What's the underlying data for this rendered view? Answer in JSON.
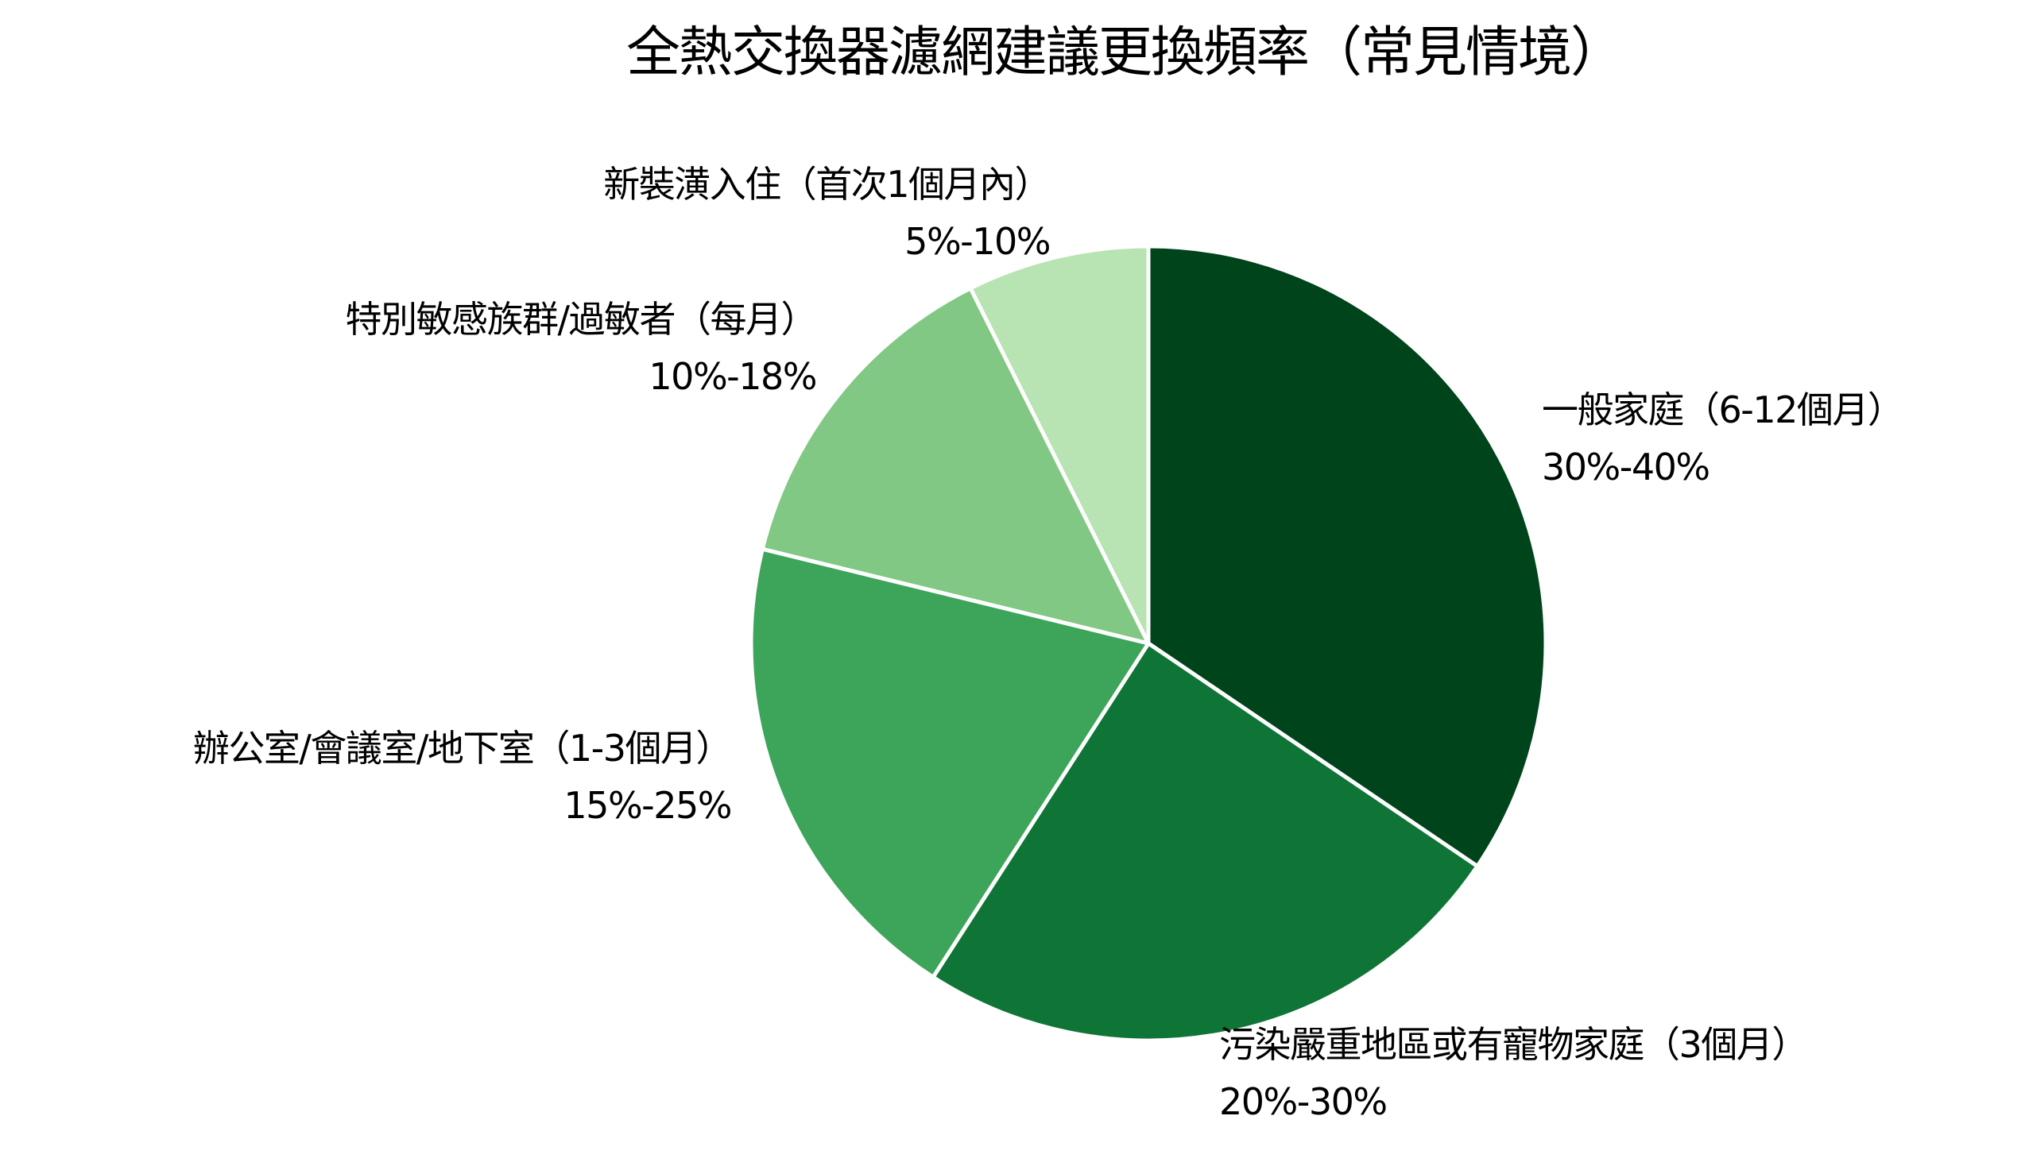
{
  "chart_data": {
    "type": "pie",
    "title": "全熱交換器濾網建議更換頻率（常見情境）",
    "start_angle": "90 (top), clockwise",
    "categories": [
      "一般家庭（6-12個月）",
      "污染嚴重地區或有寵物家庭（3個月）",
      "辦公室/會議室/地下室（1-3個月）",
      "特別敏感族群/過敏者（每月）",
      "新裝潢入住（首次1個月內）"
    ],
    "range_labels": [
      "30%-40%",
      "20%-30%",
      "15%-25%",
      "10%-18%",
      "5%-10%"
    ],
    "values": [
      35,
      25,
      20,
      14,
      7.5
    ],
    "colors": [
      "#00441b",
      "#0f7536",
      "#3da55a",
      "#80c883",
      "#b8e3b2"
    ],
    "legend": "none (labels placed outside slices)",
    "edge_color": "#ffffff"
  },
  "title": "全熱交換器濾網建議更換頻率（常見情境）",
  "slices": [
    {
      "name": "一般家庭（6-12個月）",
      "range": "30%-40%",
      "value": 35,
      "color": "#00441b"
    },
    {
      "name": "污染嚴重地區或有寵物家庭（3個月）",
      "range": "20%-30%",
      "value": 25,
      "color": "#0f7536"
    },
    {
      "name": "辦公室/會議室/地下室（1-3個月）",
      "range": "15%-25%",
      "value": 20,
      "color": "#3da55a"
    },
    {
      "name": "特別敏感族群/過敏者（每月）",
      "range": "10%-18%",
      "value": 14,
      "color": "#80c883"
    },
    {
      "name": "新裝潢入住（首次1個月內）",
      "range": "5%-10%",
      "value": 7.5,
      "color": "#b8e3b2"
    }
  ]
}
